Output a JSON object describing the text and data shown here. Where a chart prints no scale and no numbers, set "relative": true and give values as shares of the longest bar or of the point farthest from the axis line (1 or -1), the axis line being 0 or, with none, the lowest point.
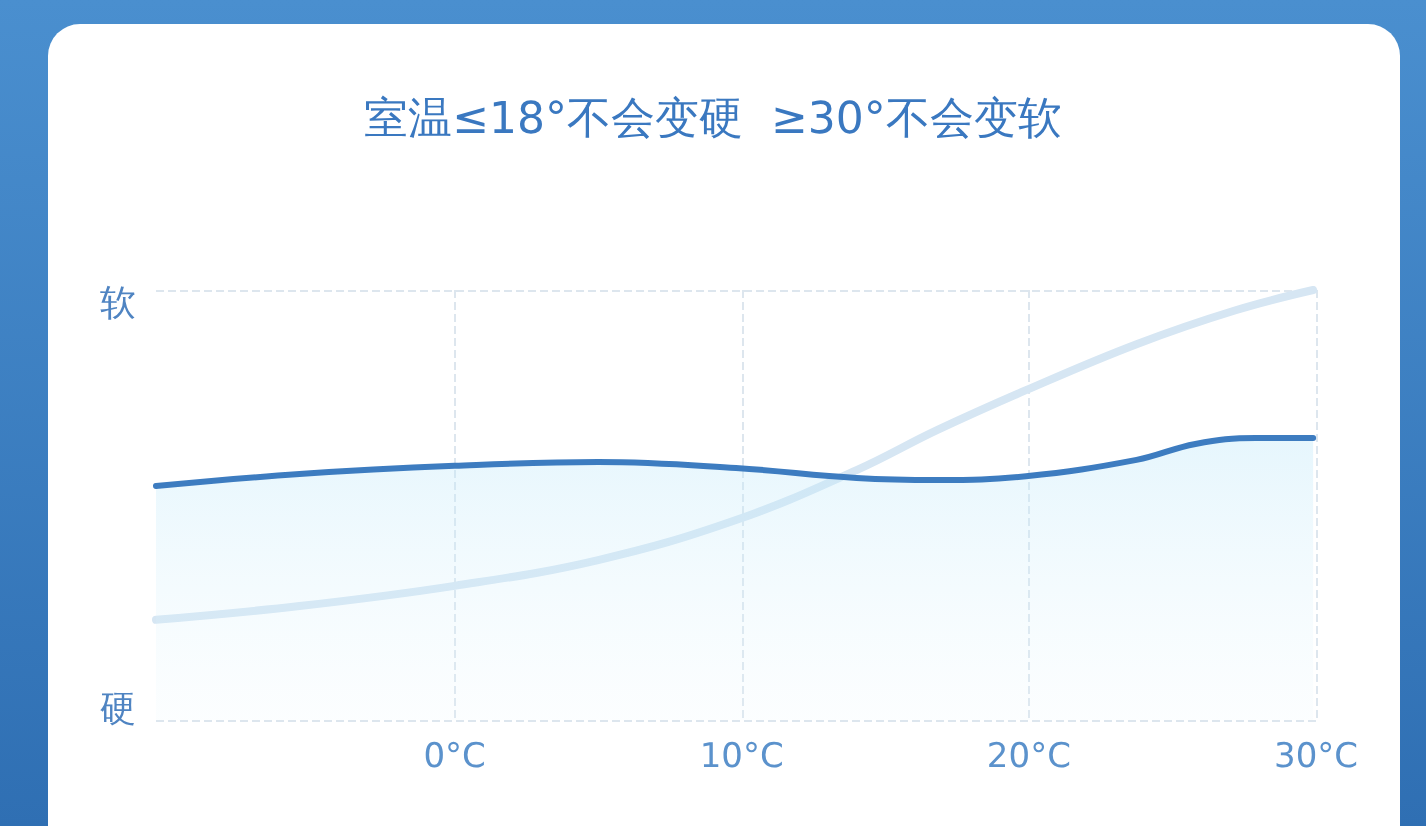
{
  "chart_data": {
    "type": "line",
    "title": "室温≤18°不会变硬  ≥30°不会变软",
    "relative": true,
    "annotations": [
      "软",
      "硬"
    ],
    "xlim": [
      -10.4,
      30
    ],
    "xticks": [
      {
        "value": 0,
        "label": "0°C"
      },
      {
        "value": 10,
        "label": "10°C"
      },
      {
        "value": 20,
        "label": "20°C"
      },
      {
        "value": 30,
        "label": "30°C"
      }
    ],
    "grid": true,
    "marker": "none",
    "line_style": "solid",
    "series": [
      {
        "type": "area",
        "color": "#3d7cc0",
        "x": [
          -10.4,
          -5.4,
          0,
          5,
          9.8,
          14,
          16.8,
          19.9,
          23.75,
          25.8,
          27.9,
          29.9
        ],
        "values": [
          0.544,
          0.572,
          0.591,
          0.6,
          0.586,
          0.563,
          0.558,
          0.567,
          0.605,
          0.642,
          0.656,
          0.656
        ]
      },
      {
        "color": "#d6e6f3",
        "x": [
          -10.4,
          -5.4,
          0,
          5,
          9.8,
          14,
          16.8,
          19.9,
          23.75,
          27.2,
          29.9
        ],
        "values": [
          0.233,
          0.265,
          0.312,
          0.372,
          0.465,
          0.581,
          0.674,
          0.767,
          0.874,
          0.953,
          1.0
        ]
      }
    ]
  }
}
